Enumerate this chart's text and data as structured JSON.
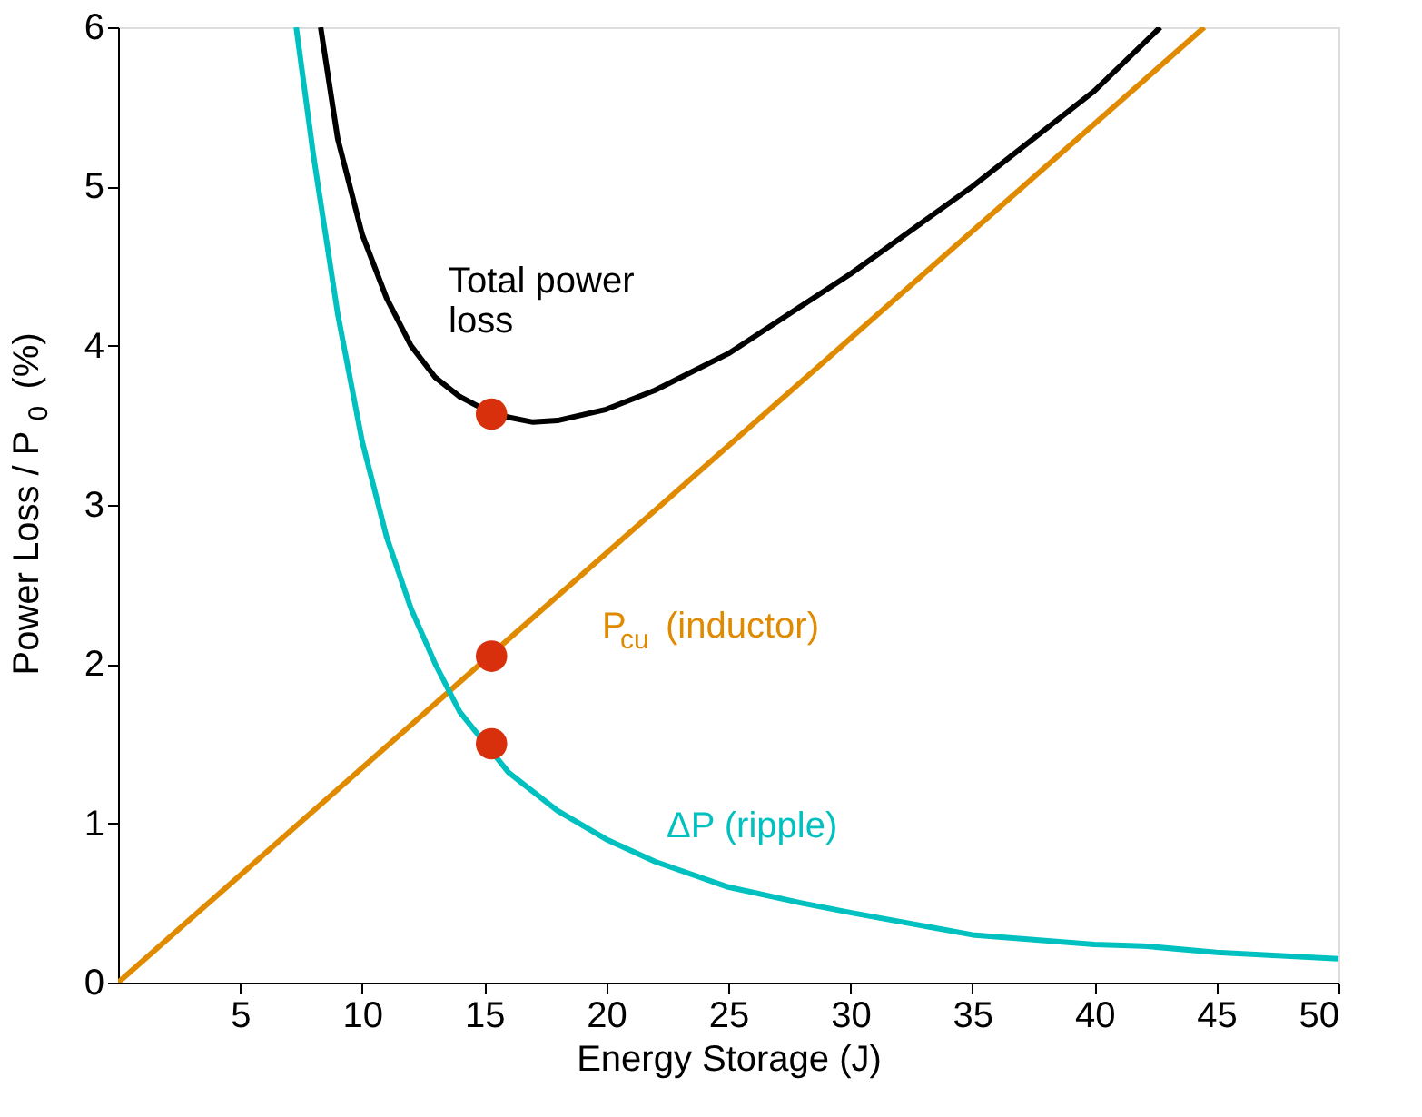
{
  "chart_data": {
    "type": "line",
    "xlabel": "Energy Storage (J)",
    "ylabel": "Power Loss / P$_{0}$ (%)",
    "xlim": [
      0,
      50
    ],
    "xticks": [
      5,
      10,
      15,
      20,
      25,
      30,
      35,
      40,
      45,
      50
    ],
    "ylim": [
      0,
      6
    ],
    "yticks": [
      0,
      1,
      2,
      3,
      4,
      5,
      6
    ],
    "grid": false,
    "series": [
      {
        "name": "Total power\nloss",
        "color": "#000000",
        "x": [
          8.3,
          9,
          10,
          11,
          12,
          13,
          14,
          15,
          16,
          17,
          18,
          20,
          22,
          25,
          30,
          35,
          40,
          42.7
        ],
        "values": [
          6,
          5.3,
          4.7,
          4.3,
          4.0,
          3.8,
          3.68,
          3.6,
          3.55,
          3.52,
          3.53,
          3.6,
          3.72,
          3.95,
          4.45,
          5.0,
          5.6,
          6
        ]
      },
      {
        "name": "P$_{cu}$ (inductor)",
        "color": "#e08a00",
        "x": [
          0,
          44.5
        ],
        "values": [
          0,
          6
        ]
      },
      {
        "name": "ΔP (ripple)",
        "color": "#00c0c0",
        "x": [
          7.3,
          8,
          9,
          10,
          11,
          12,
          13,
          14,
          16,
          18,
          20,
          22,
          25,
          28,
          30,
          35,
          40,
          42,
          45,
          50
        ],
        "values": [
          6,
          5.2,
          4.2,
          3.4,
          2.8,
          2.35,
          2.0,
          1.7,
          1.32,
          1.08,
          0.9,
          0.76,
          0.6,
          0.5,
          0.44,
          0.3,
          0.24,
          0.23,
          0.19,
          0.15
        ]
      },
      {
        "type": "scatter",
        "color": "#d8300c",
        "x": [
          15.3,
          15.3,
          15.3
        ],
        "values": [
          3.57,
          2.05,
          1.5
        ]
      }
    ]
  }
}
